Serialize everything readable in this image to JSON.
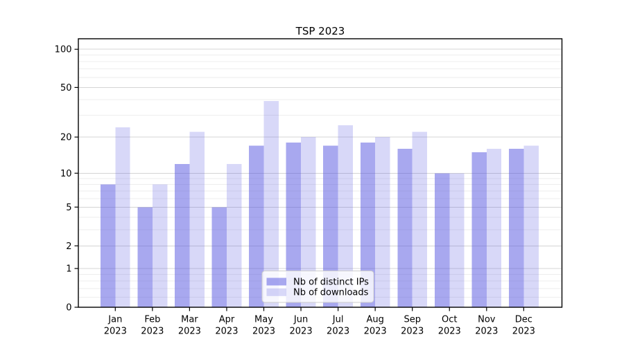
{
  "chart_data": {
    "type": "bar",
    "title": "TSP 2023",
    "categories": [
      "Jan",
      "Feb",
      "Mar",
      "Apr",
      "May",
      "Jun",
      "Jul",
      "Aug",
      "Sep",
      "Oct",
      "Nov",
      "Dec"
    ],
    "category_year": "2023",
    "series": [
      {
        "name": "Nb of distinct IPs",
        "color": "rgba(85,85,224,0.51)",
        "values": [
          8,
          5,
          12,
          5,
          17,
          18,
          17,
          18,
          16,
          10,
          15,
          16
        ]
      },
      {
        "name": "Nb of downloads",
        "color": "rgba(85,85,224,0.23)",
        "values": [
          24,
          8,
          22,
          12,
          39,
          20,
          25,
          20,
          22,
          10,
          16,
          17
        ]
      }
    ],
    "xlabel": "",
    "ylabel": "",
    "yscale": "log1p",
    "ylim": [
      0,
      120
    ],
    "yticks": [
      100,
      50,
      20,
      10,
      5,
      2,
      1,
      0
    ],
    "yticks_minor": [
      0.2,
      0.4,
      0.6,
      0.8,
      3,
      4,
      6,
      7,
      8,
      9,
      30,
      40,
      60,
      70,
      80,
      90
    ],
    "grid": true,
    "grid_major_color": "#d4d4d4",
    "grid_minor_color": "#ededed",
    "axis_color": "#000000",
    "legend": {
      "position": "lower center",
      "labels": [
        "Nb of distinct IPs",
        "Nb of downloads"
      ]
    }
  }
}
